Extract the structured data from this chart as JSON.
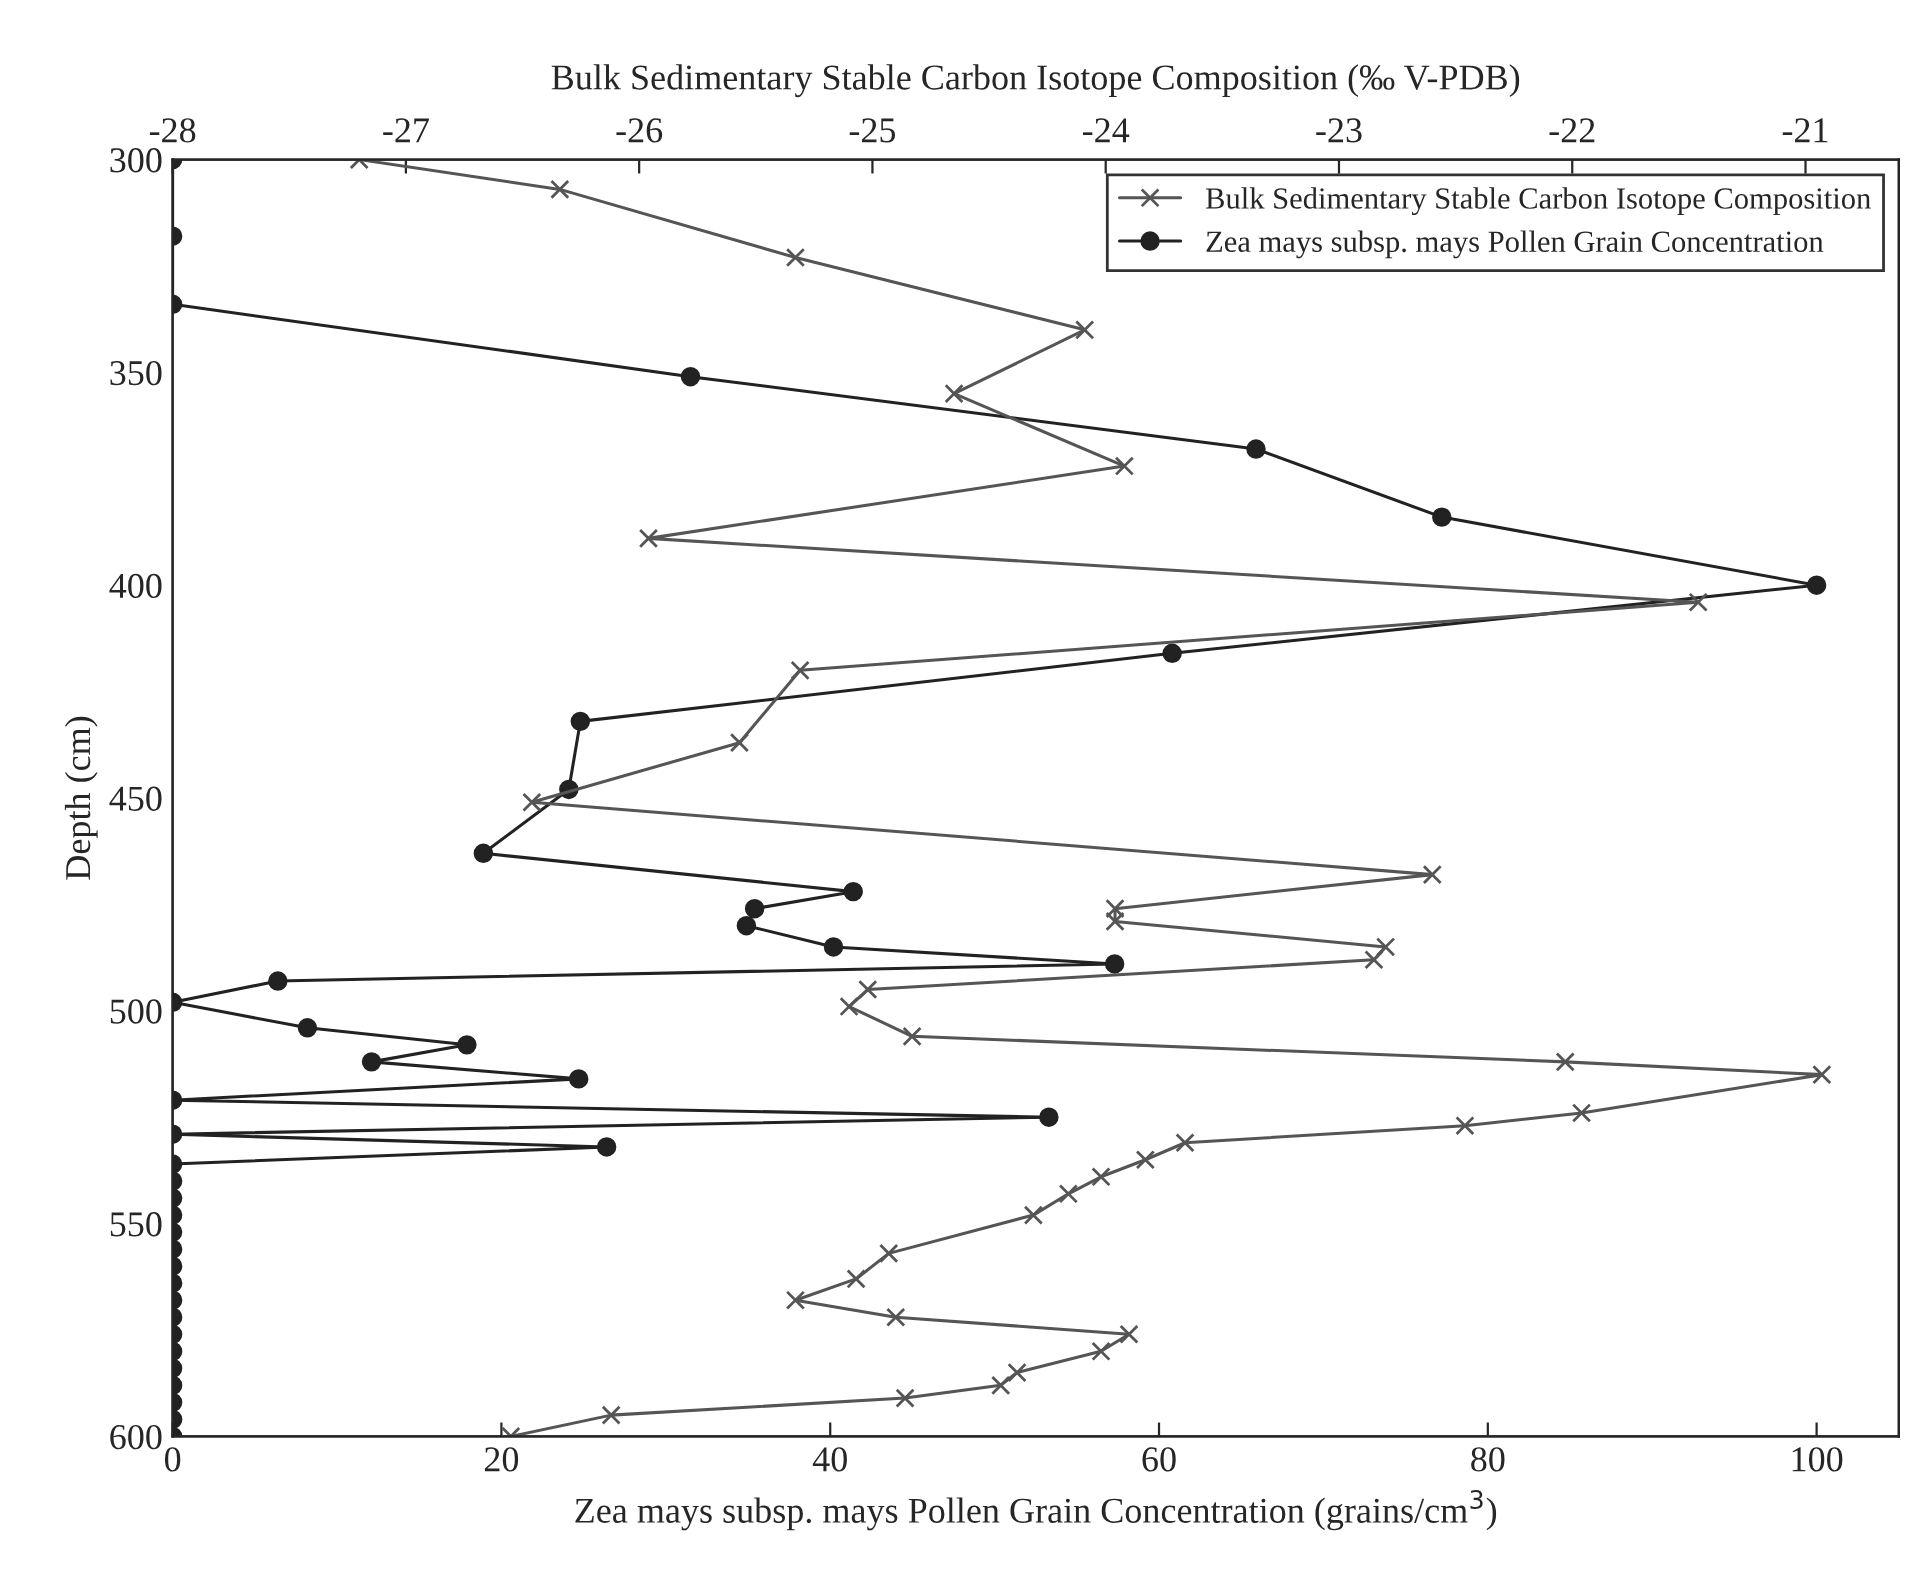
{
  "chart_data": {
    "type": "line",
    "xlabel": "Zea mays subsp. mays Pollen Grain Concentration (grains/cm$^{3}$)",
    "x2label": "Bulk Sedimentary Stable Carbon Isotope Composition (‰ V-PDB)",
    "ylabel": "Depth (cm)",
    "xlim": [
      0,
      105
    ],
    "xticks": [
      0,
      20,
      40,
      60,
      80,
      100
    ],
    "x2lim": [
      -28,
      -20.6
    ],
    "x2ticks": [
      -28,
      -27,
      -26,
      -25,
      -24,
      -23,
      -22,
      -21
    ],
    "ylim": [
      600,
      300
    ],
    "yticks": [
      300,
      350,
      400,
      450,
      500,
      550,
      600
    ],
    "grid": false,
    "legend": "top right",
    "series": [
      {
        "name": "Bulk Sedimentary Stable Carbon Isotope Composition",
        "color": "#555555",
        "marker": "cross",
        "axis": "x2",
        "x": [
          -27.2,
          -26.34,
          -25.33,
          -24.09,
          -24.65,
          -23.92,
          -25.96,
          -21.46,
          -25.31,
          -25.57,
          -26.46,
          -22.6,
          -23.96,
          -23.96,
          -22.8,
          -22.85,
          -25.02,
          -25.1,
          -24.83,
          -22.03,
          -20.93,
          -21.96,
          -22.46,
          -23.66,
          -23.83,
          -24.02,
          -24.16,
          -24.31,
          -24.93,
          -25.07,
          -25.33,
          -24.9,
          -23.9,
          -24.02,
          -24.38,
          -24.45,
          -24.86,
          -26.12,
          -26.55
        ],
        "values": [
          300,
          307,
          323,
          340,
          355,
          372,
          389,
          404,
          420,
          437,
          451,
          468,
          476,
          479,
          485,
          488,
          495,
          499,
          506,
          512,
          515,
          524,
          527,
          531,
          535,
          539,
          543,
          548,
          557,
          563,
          568,
          572,
          576,
          580,
          585,
          588,
          591,
          595,
          600
        ]
      },
      {
        "name": "Zea mays subsp. mays Pollen Grain Concentration",
        "color": "#222222",
        "marker": "circle",
        "x": [
          0,
          0,
          0,
          31.5,
          65.9,
          77.2,
          100,
          60.8,
          24.8,
          24.1,
          18.9,
          41.4,
          35.4,
          34.9,
          40.2,
          57.3,
          6.4,
          0,
          8.2,
          17.9,
          12.1,
          24.7,
          0,
          53.3,
          0,
          26.4,
          0,
          0,
          0,
          0,
          0,
          0,
          0,
          0,
          0,
          0,
          0,
          0,
          0,
          0,
          0,
          0,
          0
        ],
        "values": [
          300,
          318,
          334,
          351,
          368,
          384,
          400,
          416,
          432,
          448,
          463,
          472,
          476,
          480,
          485,
          489,
          493,
          498,
          504,
          508,
          512,
          516,
          521,
          525,
          529,
          532,
          536,
          540,
          544,
          548,
          552,
          556,
          560,
          564,
          568,
          572,
          576,
          580,
          584,
          588,
          592,
          596,
          600
        ]
      }
    ]
  }
}
